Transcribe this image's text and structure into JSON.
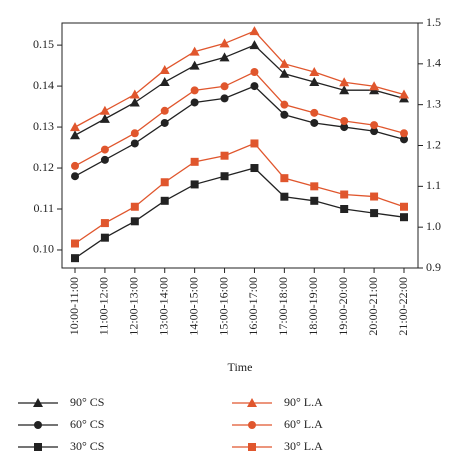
{
  "chart_data": {
    "type": "line",
    "x_label": "Time",
    "categories": [
      "10:00-11:00",
      "11:00-12:00",
      "12:00-13:00",
      "13:00-14:00",
      "14:00-15:00",
      "15:00-16:00",
      "16:00-17:00",
      "17:00-18:00",
      "18:00-19:00",
      "19:00-20:00",
      "20:00-21:00",
      "21:00-22:00"
    ],
    "ylim": [
      0.0956,
      0.1554
    ],
    "yticks": [
      {
        "value": 0.1,
        "label": "0.10"
      },
      0.11,
      0.12,
      0.13,
      0.14,
      0.15
    ],
    "y2lim": [
      0.9,
      1.5
    ],
    "y2ticks": [
      0.9,
      {
        "value": 1.0,
        "label": "1.0"
      },
      1.1,
      1.2,
      1.3,
      1.4,
      1.5
    ],
    "series": [
      {
        "name": "90° CS",
        "color": "#222222",
        "marker": "triangle",
        "values": [
          0.128,
          0.132,
          0.136,
          0.141,
          0.145,
          0.147,
          0.15,
          0.143,
          0.141,
          0.139,
          0.139,
          0.137
        ]
      },
      {
        "name": "60° CS",
        "color": "#222222",
        "marker": "circle",
        "values": [
          0.118,
          0.122,
          0.126,
          0.131,
          0.136,
          0.137,
          0.14,
          0.133,
          0.131,
          0.13,
          0.129,
          0.127
        ]
      },
      {
        "name": "30° CS",
        "color": "#222222",
        "marker": "square",
        "values": [
          0.098,
          0.103,
          0.107,
          0.112,
          0.116,
          0.118,
          0.12,
          0.113,
          0.112,
          0.11,
          0.109,
          0.108
        ]
      },
      {
        "name": "90° L.A",
        "color": "#e0562d",
        "marker": "triangle",
        "axis": "y2",
        "values": [
          1.245,
          1.285,
          1.325,
          1.385,
          1.43,
          1.45,
          1.48,
          1.4,
          1.38,
          1.355,
          1.345,
          1.325
        ]
      },
      {
        "name": "60° L.A",
        "color": "#e0562d",
        "marker": "circle",
        "axis": "y2",
        "values": [
          1.15,
          1.19,
          1.23,
          1.285,
          1.335,
          1.345,
          1.38,
          1.3,
          1.28,
          1.26,
          1.25,
          1.23
        ]
      },
      {
        "name": "30° L.A",
        "color": "#e0562d",
        "marker": "square",
        "axis": "y2",
        "values": [
          0.96,
          1.01,
          1.05,
          1.11,
          1.16,
          1.175,
          1.205,
          1.12,
          1.1,
          1.08,
          1.075,
          1.05
        ]
      }
    ]
  }
}
